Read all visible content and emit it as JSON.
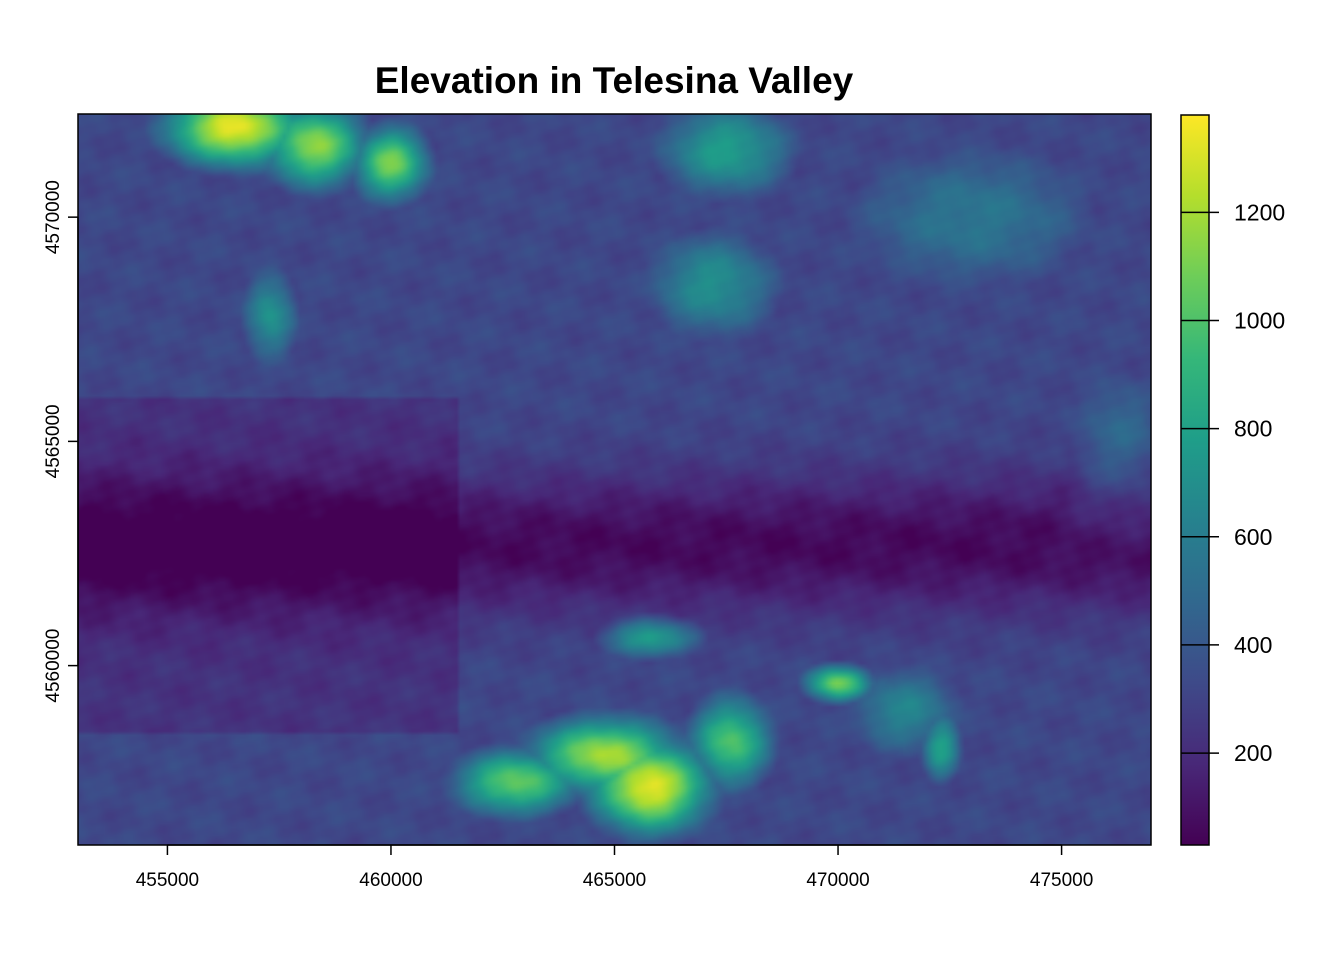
{
  "chart_data": {
    "type": "heatmap",
    "title": "Elevation in Telesina Valley",
    "xlabel": "",
    "ylabel": "",
    "xlim": [
      453000,
      477000
    ],
    "ylim": [
      4556000,
      4572300
    ],
    "x_ticks": [
      455000,
      460000,
      465000,
      470000,
      475000
    ],
    "y_ticks": [
      4560000,
      4565000,
      4570000
    ],
    "x_tick_labels": [
      "455000",
      "460000",
      "465000",
      "470000",
      "475000"
    ],
    "y_tick_labels": [
      "4560000",
      "4565000",
      "4570000"
    ],
    "colorbar": {
      "min": 30,
      "max": 1380,
      "ticks": [
        200,
        400,
        600,
        800,
        1000,
        1200
      ],
      "tick_labels": [
        "200",
        "400",
        "600",
        "800",
        "1000",
        "1200"
      ],
      "palette": [
        "#440154",
        "#482878",
        "#3E4A89",
        "#31688E",
        "#26828E",
        "#1F9E89",
        "#35B779",
        "#6DCD59",
        "#B4DE2C",
        "#FDE725"
      ]
    },
    "features": [
      {
        "x": 456500,
        "y": 4572000,
        "elevation": 1350,
        "sx": 1600,
        "sy": 900
      },
      {
        "x": 458300,
        "y": 4571600,
        "elevation": 1150,
        "sx": 1200,
        "sy": 1000
      },
      {
        "x": 460000,
        "y": 4571200,
        "elevation": 1100,
        "sx": 900,
        "sy": 900
      },
      {
        "x": 457300,
        "y": 4567800,
        "elevation": 720,
        "sx": 700,
        "sy": 1200
      },
      {
        "x": 467500,
        "y": 4571500,
        "elevation": 780,
        "sx": 1700,
        "sy": 1200
      },
      {
        "x": 467200,
        "y": 4568500,
        "elevation": 700,
        "sx": 1700,
        "sy": 1400
      },
      {
        "x": 473000,
        "y": 4570000,
        "elevation": 560,
        "sx": 3500,
        "sy": 2000
      },
      {
        "x": 476300,
        "y": 4565300,
        "elevation": 480,
        "sx": 1500,
        "sy": 1800
      },
      {
        "x": 465800,
        "y": 4557300,
        "elevation": 1340,
        "sx": 1400,
        "sy": 1100
      },
      {
        "x": 464800,
        "y": 4558000,
        "elevation": 1200,
        "sx": 1800,
        "sy": 900
      },
      {
        "x": 462800,
        "y": 4557400,
        "elevation": 1050,
        "sx": 1500,
        "sy": 800
      },
      {
        "x": 467600,
        "y": 4558300,
        "elevation": 1000,
        "sx": 1000,
        "sy": 1100
      },
      {
        "x": 470000,
        "y": 4559600,
        "elevation": 1080,
        "sx": 800,
        "sy": 450
      },
      {
        "x": 465800,
        "y": 4560600,
        "elevation": 780,
        "sx": 1200,
        "sy": 500
      },
      {
        "x": 472300,
        "y": 4558200,
        "elevation": 800,
        "sx": 500,
        "sy": 900
      },
      {
        "x": 471500,
        "y": 4559000,
        "elevation": 640,
        "sx": 1500,
        "sy": 1200
      }
    ]
  }
}
